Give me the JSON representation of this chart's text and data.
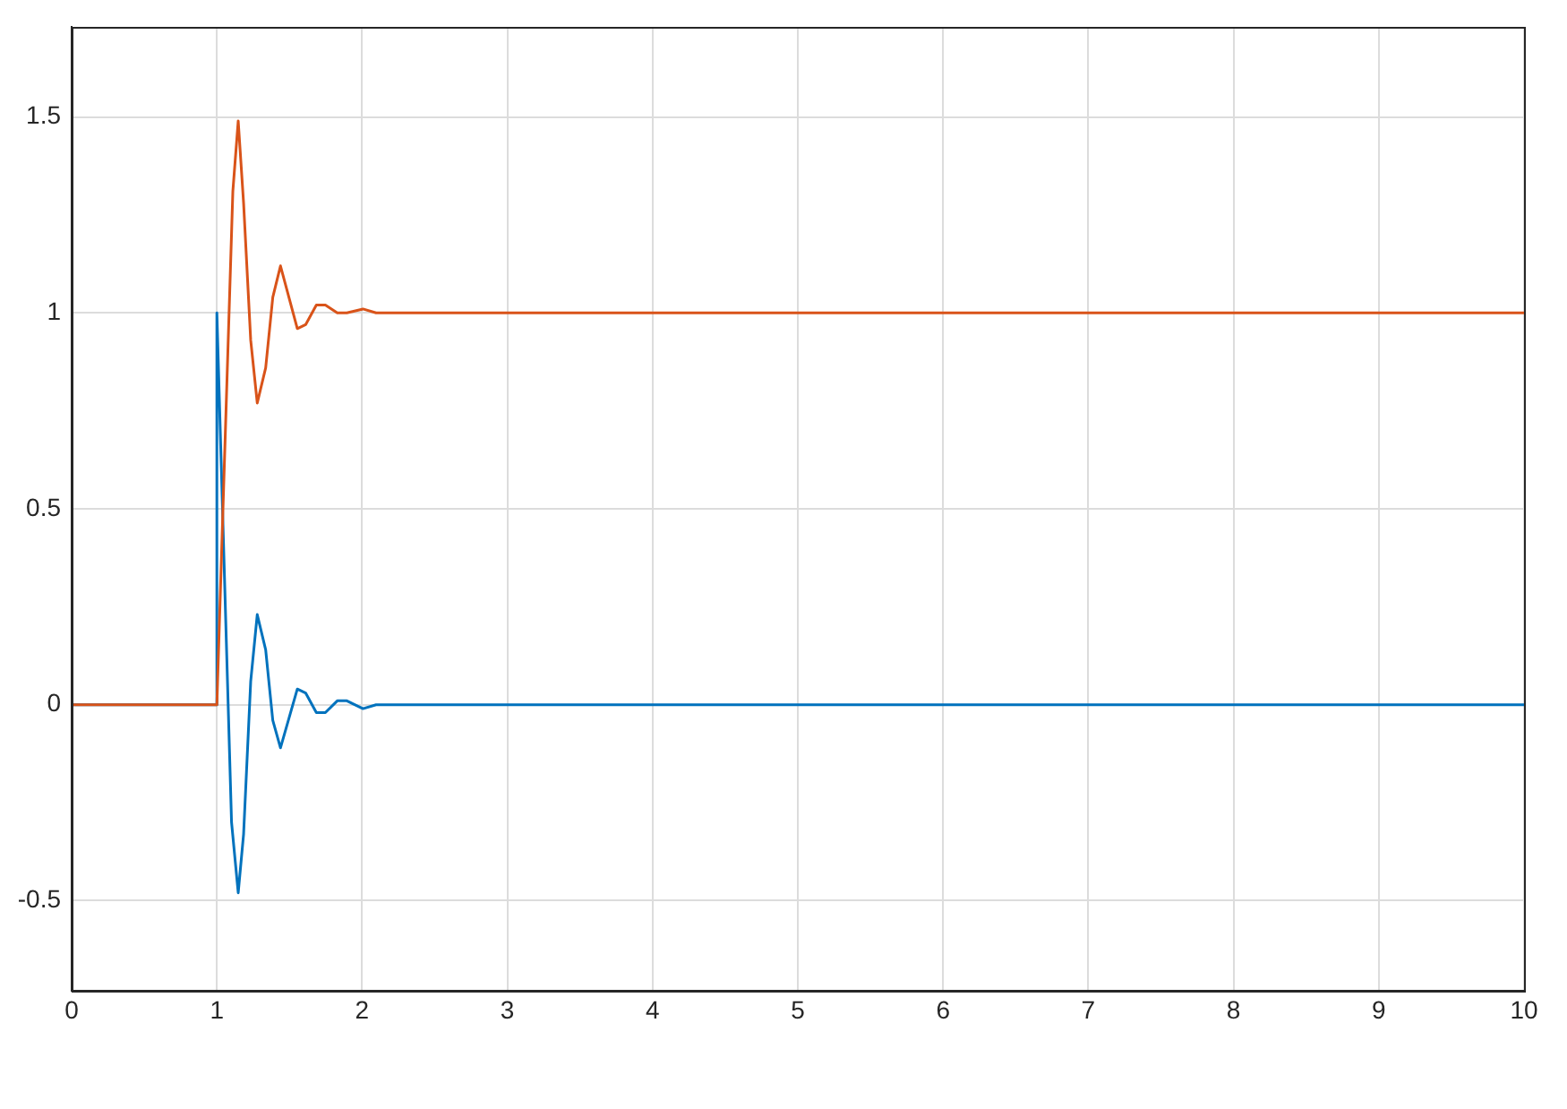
{
  "chart_data": {
    "type": "line",
    "xlim": [
      0,
      10
    ],
    "ylim": [
      -0.73,
      1.73
    ],
    "xticks": [
      0,
      1,
      2,
      3,
      4,
      5,
      6,
      7,
      8,
      9,
      10
    ],
    "yticks": [
      -0.5,
      0,
      0.5,
      1,
      1.5
    ],
    "grid": true,
    "marker": "none",
    "line_style": "solid",
    "series": [
      {
        "color": "#0072bd",
        "x": [
          0,
          1,
          1,
          1.101,
          1.147,
          1.184,
          1.233,
          1.278,
          1.336,
          1.385,
          1.438,
          1.554,
          1.611,
          1.685,
          1.747,
          1.829,
          1.895,
          2.006,
          2.096,
          3,
          4,
          5,
          6,
          7,
          8,
          9,
          10
        ],
        "values": [
          0,
          0,
          1,
          -0.3,
          -0.48,
          -0.33,
          0.06,
          0.23,
          0.14,
          -0.04,
          -0.11,
          0.04,
          0.03,
          -0.02,
          -0.02,
          0.01,
          0.01,
          -0.01,
          0,
          0,
          0,
          0,
          0,
          0,
          0,
          0,
          0
        ]
      },
      {
        "color": "#d95319",
        "x": [
          0,
          1,
          1.11,
          1.147,
          1.184,
          1.233,
          1.278,
          1.336,
          1.385,
          1.438,
          1.554,
          1.611,
          1.685,
          1.747,
          1.829,
          1.895,
          2.006,
          2.096,
          3,
          4,
          5,
          6,
          7,
          8,
          9,
          10
        ],
        "values": [
          0,
          0,
          1.31,
          1.49,
          1.28,
          0.93,
          0.77,
          0.86,
          1.04,
          1.12,
          0.96,
          0.97,
          1.02,
          1.02,
          1,
          1,
          1.01,
          1,
          1,
          1,
          1,
          1,
          1,
          1,
          1,
          1
        ]
      }
    ]
  }
}
